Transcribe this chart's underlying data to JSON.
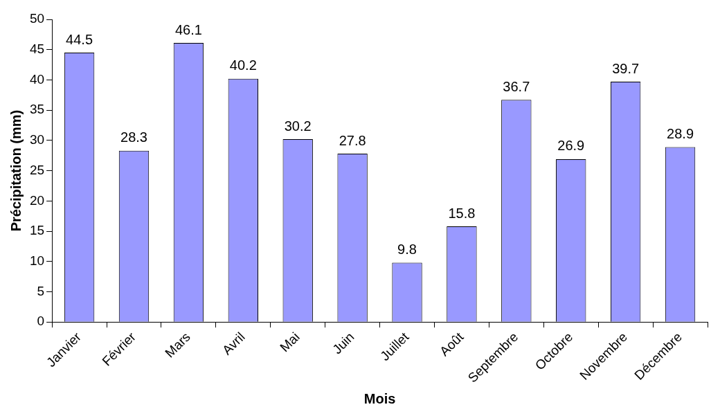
{
  "chart_data": {
    "type": "bar",
    "xlabel": "Mois",
    "ylabel": "Précipitation (mm)",
    "categories": [
      "Janvier",
      "Février",
      "Mars",
      "Avril",
      "Mai",
      "Juin",
      "Juillet",
      "Août",
      "Septembre",
      "Octobre",
      "Novembre",
      "Décembre"
    ],
    "values": [
      44.5,
      28.3,
      46.1,
      40.2,
      30.2,
      27.8,
      9.8,
      15.8,
      36.7,
      26.9,
      39.7,
      28.9
    ],
    "color": "#9999ff",
    "ylim": [
      0,
      50
    ],
    "yticks": [
      0,
      5,
      10,
      15,
      20,
      25,
      30,
      35,
      40,
      45,
      50
    ],
    "grid": false,
    "legend": false,
    "data_labels": true
  }
}
